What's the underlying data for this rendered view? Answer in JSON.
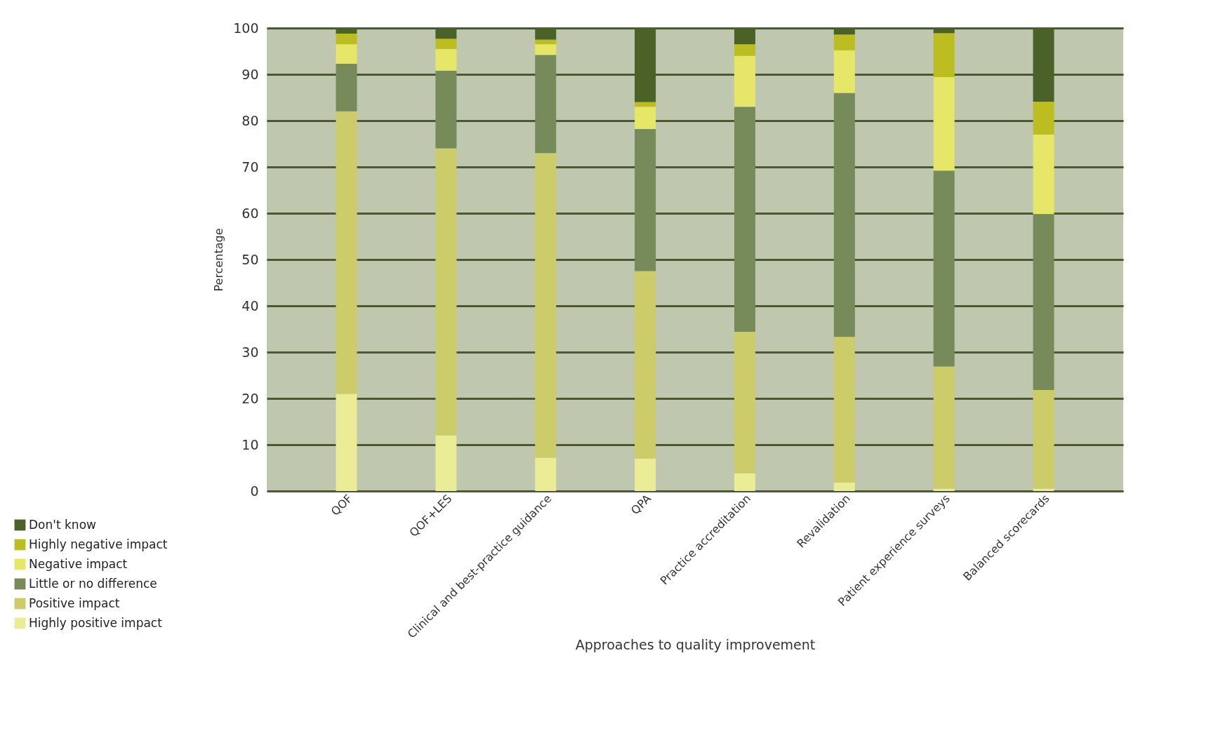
{
  "chart_data": {
    "type": "bar",
    "stacked": true,
    "xlabel": "Approaches to quality improvement",
    "ylabel": "Percentage",
    "categories": [
      "QOF",
      "QOF+LES",
      "Clinical and best-practice guidance",
      "QPA",
      "Practice accreditation",
      "Revalidation",
      "Patient experience surveys",
      "Balanced scorecards"
    ],
    "series": [
      {
        "name": "Highly positive impact",
        "color": "#eaec96",
        "values": [
          21,
          12,
          7.2,
          7,
          3.8,
          1.8,
          0.5,
          0.5
        ]
      },
      {
        "name": "Positive impact",
        "color": "#cccd6a",
        "values": [
          61,
          62,
          65.8,
          40.5,
          30.6,
          31.5,
          26.4,
          21.3
        ]
      },
      {
        "name": "Little or no difference",
        "color": "#778a5a",
        "values": [
          10.3,
          16.8,
          21.2,
          30.7,
          48.6,
          52.7,
          42.3,
          38
        ]
      },
      {
        "name": "Negative impact",
        "color": "#e6e668",
        "values": [
          4.2,
          4.7,
          2.3,
          4.8,
          11,
          9.2,
          20.2,
          17.2
        ]
      },
      {
        "name": "Highly negative impact",
        "color": "#bcbd20",
        "values": [
          2.3,
          2.2,
          1,
          1,
          2.5,
          3.4,
          9.5,
          7.1
        ]
      },
      {
        "name": "Don't know",
        "color": "#4a6128",
        "values": [
          1.2,
          2.3,
          2.5,
          16,
          3.5,
          1.4,
          1.1,
          15.9
        ]
      }
    ],
    "ylim": [
      0,
      100
    ],
    "yticks": [
      0,
      10,
      20,
      30,
      40,
      50,
      60,
      70,
      80,
      90,
      100
    ],
    "grid": "y",
    "legend": "bottom left"
  }
}
